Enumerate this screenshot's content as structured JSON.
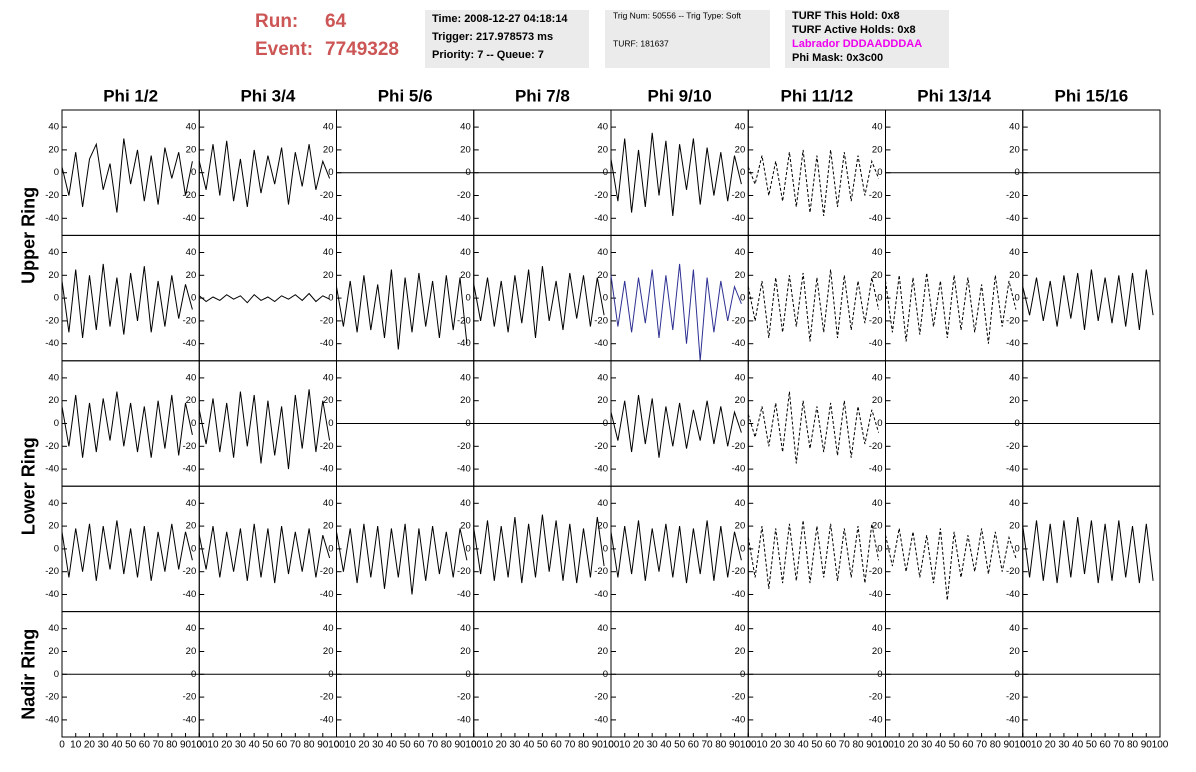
{
  "header": {
    "run_label": "Run:",
    "run": 64,
    "event_label": "Event:",
    "event": 7749328,
    "time": "Time: 2008-12-27 04:18:14",
    "trigger": "Trigger: 217.978573 ms",
    "priority": "Priority: 7 -- Queue: 7",
    "trig_num": "Trig Num: 50556 -- Trig Type: Soft",
    "turf": "TURF: 181637",
    "turf_hold": "TURF This Hold: 0x8",
    "turf_active": "TURF Active Holds: 0x8",
    "labrador": "Labrador DDDAADDDAA",
    "phi_mask": "Phi Mask: 0x3c00"
  },
  "chart_data": {
    "type": "line",
    "columns": [
      "Phi 1/2",
      "Phi 3/4",
      "Phi 5/6",
      "Phi 7/8",
      "Phi 9/10",
      "Phi 11/12",
      "Phi 13/14",
      "Phi 15/16"
    ],
    "rings": [
      "Upper Ring",
      "Lower Ring",
      "Nadir Ring"
    ],
    "xlim": [
      0,
      100
    ],
    "xticks": [
      0,
      10,
      20,
      30,
      40,
      50,
      60,
      70,
      80,
      90,
      100
    ],
    "ylim": [
      -55,
      55
    ],
    "yticks": [
      -40,
      -20,
      0,
      20,
      40
    ],
    "x": [
      0,
      5,
      10,
      15,
      20,
      25,
      30,
      35,
      40,
      45,
      50,
      55,
      60,
      65,
      70,
      75,
      80,
      85,
      90,
      95
    ],
    "panels": [
      [
        {
          "color": "#000000",
          "style": "solid",
          "values": [
            5,
            -20,
            18,
            -30,
            12,
            25,
            -15,
            8,
            -35,
            30,
            -10,
            20,
            -25,
            15,
            -28,
            22,
            -5,
            18,
            -20,
            10
          ]
        },
        {
          "color": "#000000",
          "style": "solid",
          "values": [
            10,
            -15,
            25,
            -20,
            28,
            -25,
            12,
            -30,
            20,
            -18,
            15,
            -10,
            22,
            -28,
            18,
            -12,
            25,
            -15,
            10,
            -5
          ]
        },
        {
          "color": "#000000",
          "style": "solid",
          "x": [
            0,
            100
          ],
          "values": [
            0,
            0
          ]
        },
        {
          "color": "#000000",
          "style": "solid",
          "x": [
            0,
            100
          ],
          "values": [
            0,
            0
          ]
        },
        {
          "color": "#000000",
          "style": "solid",
          "values": [
            12,
            -25,
            30,
            -35,
            20,
            -30,
            35,
            -20,
            28,
            -38,
            25,
            -15,
            30,
            -28,
            22,
            -20,
            18,
            -25,
            15,
            -10
          ]
        },
        {
          "color": "#000000",
          "style": "dashed",
          "values": [
            5,
            -10,
            15,
            -20,
            10,
            -25,
            18,
            -30,
            20,
            -35,
            15,
            -38,
            20,
            -30,
            18,
            -25,
            15,
            -20,
            10,
            -5
          ]
        },
        {
          "color": "#000000",
          "style": "solid",
          "x": [
            0,
            100
          ],
          "values": [
            0,
            0
          ]
        },
        {
          "color": "#000000",
          "style": "solid",
          "x": [
            0,
            100
          ],
          "values": [
            0,
            0
          ]
        }
      ],
      [
        {
          "color": "#000000",
          "style": "solid",
          "values": [
            15,
            -30,
            25,
            -35,
            20,
            -28,
            30,
            -25,
            18,
            -32,
            22,
            -20,
            28,
            -30,
            15,
            -25,
            20,
            -18,
            12,
            -10
          ]
        },
        {
          "color": "#000000",
          "style": "solid",
          "values": [
            2,
            -3,
            1,
            -2,
            3,
            -1,
            2,
            -4,
            3,
            -2,
            1,
            -3,
            2,
            -1,
            3,
            -2,
            4,
            -3,
            2,
            -1
          ]
        },
        {
          "color": "#000000",
          "style": "solid",
          "values": [
            10,
            -25,
            15,
            -30,
            20,
            -28,
            12,
            -35,
            25,
            -45,
            18,
            -30,
            22,
            -25,
            15,
            -35,
            20,
            -28,
            18,
            -40
          ]
        },
        {
          "color": "#000000",
          "style": "solid",
          "values": [
            12,
            -20,
            18,
            -25,
            15,
            -30,
            20,
            -22,
            25,
            -35,
            28,
            -20,
            15,
            -28,
            22,
            -18,
            20,
            -25,
            18,
            -15
          ]
        },
        {
          "color": "#2e3192",
          "style": "solid",
          "values": [
            20,
            -25,
            15,
            -30,
            18,
            -22,
            25,
            -35,
            20,
            -28,
            30,
            -40,
            25,
            -55,
            18,
            -30,
            15,
            -20,
            10,
            -5
          ]
        },
        {
          "color": "#000000",
          "style": "dashed",
          "values": [
            10,
            -20,
            15,
            -35,
            18,
            -30,
            20,
            -25,
            22,
            -38,
            18,
            -30,
            25,
            -35,
            20,
            -28,
            15,
            -22,
            18,
            -10
          ]
        },
        {
          "color": "#000000",
          "style": "dashed",
          "values": [
            15,
            -30,
            20,
            -38,
            18,
            -32,
            22,
            -25,
            15,
            -35,
            20,
            -28,
            18,
            -30,
            12,
            -40,
            20,
            -25,
            15,
            -10
          ]
        },
        {
          "color": "#000000",
          "style": "solid",
          "values": [
            10,
            -15,
            18,
            -20,
            15,
            -25,
            20,
            -18,
            22,
            -28,
            25,
            -20,
            18,
            -22,
            20,
            -25,
            22,
            -28,
            25,
            -15
          ]
        }
      ],
      [
        {
          "color": "#000000",
          "style": "solid",
          "values": [
            15,
            -20,
            25,
            -30,
            18,
            -25,
            22,
            -15,
            28,
            -20,
            18,
            -25,
            15,
            -30,
            20,
            -22,
            25,
            -28,
            18,
            -10
          ]
        },
        {
          "color": "#000000",
          "style": "solid",
          "values": [
            12,
            -18,
            22,
            -25,
            18,
            -30,
            28,
            -20,
            25,
            -35,
            20,
            -28,
            15,
            -40,
            25,
            -22,
            30,
            -25,
            20,
            -15
          ]
        },
        {
          "color": "#000000",
          "style": "solid",
          "x": [
            0,
            100
          ],
          "values": [
            0,
            0
          ]
        },
        {
          "color": "#000000",
          "style": "solid",
          "x": [
            0,
            100
          ],
          "values": [
            0,
            0
          ]
        },
        {
          "color": "#000000",
          "style": "solid",
          "values": [
            10,
            -15,
            20,
            -25,
            25,
            -18,
            22,
            -30,
            15,
            -20,
            18,
            -22,
            12,
            -15,
            20,
            -18,
            15,
            -20,
            10,
            -8
          ]
        },
        {
          "color": "#000000",
          "style": "dashed",
          "values": [
            8,
            -12,
            15,
            -20,
            18,
            -25,
            28,
            -35,
            20,
            -22,
            15,
            -25,
            18,
            -28,
            20,
            -30,
            15,
            -18,
            12,
            -8
          ]
        },
        {
          "color": "#000000",
          "style": "solid",
          "x": [
            0,
            100
          ],
          "values": [
            0,
            0
          ]
        },
        {
          "color": "#000000",
          "style": "solid",
          "x": [
            0,
            100
          ],
          "values": [
            0,
            0
          ]
        }
      ],
      [
        {
          "color": "#000000",
          "style": "solid",
          "values": [
            15,
            -25,
            18,
            -20,
            22,
            -28,
            20,
            -18,
            25,
            -22,
            18,
            -25,
            20,
            -28,
            15,
            -20,
            22,
            -18,
            15,
            -10
          ]
        },
        {
          "color": "#000000",
          "style": "solid",
          "values": [
            12,
            -18,
            20,
            -25,
            15,
            -20,
            18,
            -28,
            22,
            -25,
            18,
            -30,
            20,
            -22,
            15,
            -20,
            18,
            -25,
            12,
            -8
          ]
        },
        {
          "color": "#000000",
          "style": "solid",
          "values": [
            15,
            -20,
            18,
            -30,
            22,
            -25,
            20,
            -35,
            18,
            -25,
            22,
            -40,
            18,
            -28,
            20,
            -22,
            15,
            -25,
            18,
            -10
          ]
        },
        {
          "color": "#000000",
          "style": "solid",
          "values": [
            18,
            -22,
            25,
            -28,
            20,
            -25,
            28,
            -30,
            22,
            -25,
            30,
            -20,
            25,
            -28,
            22,
            -30,
            18,
            -25,
            28,
            -15
          ]
        },
        {
          "color": "#000000",
          "style": "solid",
          "values": [
            15,
            -25,
            20,
            -22,
            25,
            -28,
            18,
            -20,
            22,
            -25,
            20,
            -30,
            18,
            -22,
            25,
            -28,
            20,
            -25,
            15,
            -10
          ]
        },
        {
          "color": "#000000",
          "style": "dashed",
          "values": [
            10,
            -25,
            20,
            -35,
            18,
            -30,
            22,
            -28,
            25,
            -30,
            20,
            -25,
            22,
            -28,
            18,
            -25,
            20,
            -30,
            22,
            -10
          ]
        },
        {
          "color": "#000000",
          "style": "dashed",
          "values": [
            12,
            -15,
            18,
            -20,
            15,
            -25,
            12,
            -30,
            18,
            -45,
            15,
            -25,
            12,
            -20,
            18,
            -22,
            15,
            -20,
            10,
            -8
          ]
        },
        {
          "color": "#000000",
          "style": "solid",
          "values": [
            20,
            -25,
            25,
            -28,
            22,
            -30,
            25,
            -25,
            28,
            -22,
            25,
            -30,
            22,
            -28,
            25,
            -25,
            20,
            -30,
            22,
            -28
          ]
        }
      ],
      [
        {
          "color": "#000000",
          "style": "solid",
          "x": [
            0,
            100
          ],
          "values": [
            0,
            0
          ]
        },
        {
          "color": "#000000",
          "style": "solid",
          "x": [
            0,
            100
          ],
          "values": [
            0,
            0
          ]
        },
        {
          "color": "#000000",
          "style": "solid",
          "x": [
            0,
            100
          ],
          "values": [
            0,
            0
          ]
        },
        {
          "color": "#000000",
          "style": "solid",
          "x": [
            0,
            100
          ],
          "values": [
            0,
            0
          ]
        },
        {
          "color": "#000000",
          "style": "solid",
          "x": [
            0,
            100
          ],
          "values": [
            0,
            0
          ]
        },
        {
          "color": "#000000",
          "style": "solid",
          "x": [
            0,
            100
          ],
          "values": [
            0,
            0
          ]
        },
        {
          "color": "#000000",
          "style": "solid",
          "x": [
            0,
            100
          ],
          "values": [
            0,
            0
          ]
        },
        {
          "color": "#000000",
          "style": "solid",
          "x": [
            0,
            100
          ],
          "values": [
            0,
            0
          ]
        }
      ]
    ]
  }
}
